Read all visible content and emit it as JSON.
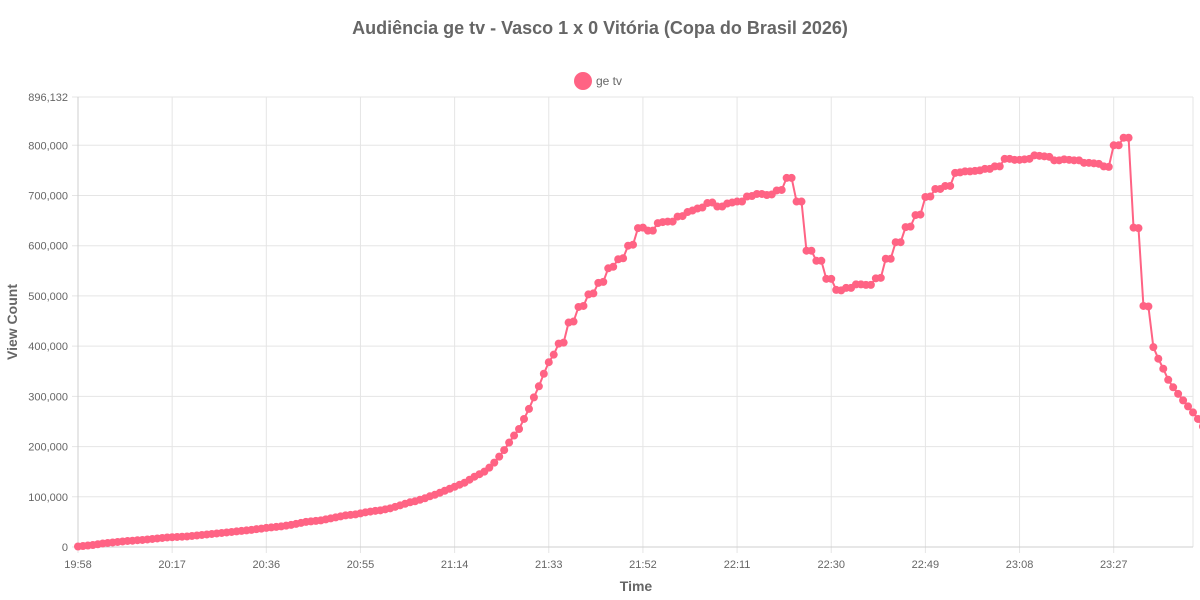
{
  "chart_data": {
    "type": "line",
    "title": "Audiência ge tv - Vasco 1 x 0 Vitória (Copa do Brasil 2026)",
    "xlabel": "Time",
    "ylabel": "View Count",
    "legend_position": "top-center",
    "grid": true,
    "series_color": "#ff6384",
    "ylim": [
      0,
      896132
    ],
    "y_ticks": [
      0,
      100000,
      200000,
      300000,
      400000,
      500000,
      600000,
      700000,
      800000,
      896132
    ],
    "x_tick_labels": [
      "19:58",
      "20:17",
      "20:36",
      "20:55",
      "21:14",
      "21:33",
      "21:52",
      "22:11",
      "22:30",
      "22:49",
      "23:08",
      "23:27"
    ],
    "x_tick_minutes": [
      0,
      19,
      38,
      57,
      76,
      95,
      114,
      133,
      152,
      171,
      190,
      209
    ],
    "x_range_minutes": [
      0,
      225
    ],
    "series": [
      {
        "name": "ge tv",
        "points": [
          [
            0,
            1000
          ],
          [
            1,
            2000
          ],
          [
            2,
            3000
          ],
          [
            3,
            4000
          ],
          [
            4,
            5500
          ],
          [
            5,
            7000
          ],
          [
            6,
            8000
          ],
          [
            7,
            9000
          ],
          [
            8,
            10000
          ],
          [
            9,
            11000
          ],
          [
            10,
            12000
          ],
          [
            11,
            12500
          ],
          [
            12,
            13500
          ],
          [
            13,
            14000
          ],
          [
            14,
            15000
          ],
          [
            15,
            16000
          ],
          [
            16,
            17000
          ],
          [
            17,
            18000
          ],
          [
            18,
            19000
          ],
          [
            19,
            19500
          ],
          [
            20,
            20000
          ],
          [
            21,
            20500
          ],
          [
            22,
            21000
          ],
          [
            23,
            22000
          ],
          [
            24,
            23000
          ],
          [
            25,
            24000
          ],
          [
            26,
            25000
          ],
          [
            27,
            26000
          ],
          [
            28,
            27000
          ],
          [
            29,
            28000
          ],
          [
            30,
            29000
          ],
          [
            31,
            30000
          ],
          [
            32,
            31000
          ],
          [
            33,
            32000
          ],
          [
            34,
            33000
          ],
          [
            35,
            34000
          ],
          [
            36,
            35500
          ],
          [
            37,
            36500
          ],
          [
            38,
            38000
          ],
          [
            39,
            39000
          ],
          [
            40,
            40000
          ],
          [
            41,
            41000
          ],
          [
            42,
            42500
          ],
          [
            43,
            44000
          ],
          [
            44,
            46000
          ],
          [
            45,
            48000
          ],
          [
            46,
            50000
          ],
          [
            47,
            51000
          ],
          [
            48,
            52000
          ],
          [
            49,
            53000
          ],
          [
            50,
            55000
          ],
          [
            51,
            57000
          ],
          [
            52,
            59000
          ],
          [
            53,
            61000
          ],
          [
            54,
            63000
          ],
          [
            55,
            64000
          ],
          [
            56,
            65000
          ],
          [
            57,
            67000
          ],
          [
            58,
            69000
          ],
          [
            59,
            70500
          ],
          [
            60,
            72000
          ],
          [
            61,
            73000
          ],
          [
            62,
            75000
          ],
          [
            63,
            77000
          ],
          [
            64,
            80000
          ],
          [
            65,
            83000
          ],
          [
            66,
            86000
          ],
          [
            67,
            89000
          ],
          [
            68,
            91000
          ],
          [
            69,
            94000
          ],
          [
            70,
            97000
          ],
          [
            71,
            101000
          ],
          [
            72,
            104000
          ],
          [
            73,
            108000
          ],
          [
            74,
            112000
          ],
          [
            75,
            116000
          ],
          [
            76,
            120000
          ],
          [
            77,
            124000
          ],
          [
            78,
            128000
          ],
          [
            79,
            134000
          ],
          [
            80,
            140000
          ],
          [
            81,
            145000
          ],
          [
            82,
            150000
          ],
          [
            83,
            158000
          ],
          [
            84,
            168000
          ],
          [
            85,
            180000
          ],
          [
            86,
            193000
          ],
          [
            87,
            208000
          ],
          [
            88,
            222000
          ],
          [
            89,
            235000
          ],
          [
            90,
            255000
          ],
          [
            91,
            275000
          ],
          [
            92,
            298000
          ],
          [
            93,
            320000
          ],
          [
            94,
            345000
          ],
          [
            95,
            368000
          ],
          [
            96,
            383000
          ],
          [
            97,
            405000
          ],
          [
            98,
            407000
          ],
          [
            99,
            447000
          ],
          [
            100,
            449000
          ],
          [
            101,
            478000
          ],
          [
            102,
            480000
          ],
          [
            103,
            503000
          ],
          [
            104,
            505000
          ],
          [
            105,
            526000
          ],
          [
            106,
            528000
          ],
          [
            107,
            555000
          ],
          [
            108,
            558000
          ],
          [
            109,
            573000
          ],
          [
            110,
            575000
          ],
          [
            111,
            600000
          ],
          [
            112,
            602000
          ],
          [
            113,
            635000
          ],
          [
            114,
            636000
          ],
          [
            115,
            630000
          ],
          [
            116,
            630000
          ],
          [
            117,
            645000
          ],
          [
            118,
            647000
          ],
          [
            119,
            648000
          ],
          [
            120,
            648000
          ],
          [
            121,
            658000
          ],
          [
            122,
            659000
          ],
          [
            123,
            667000
          ],
          [
            124,
            670000
          ],
          [
            125,
            674000
          ],
          [
            126,
            676000
          ],
          [
            127,
            685000
          ],
          [
            128,
            686000
          ],
          [
            129,
            678000
          ],
          [
            130,
            678000
          ],
          [
            131,
            684000
          ],
          [
            132,
            686000
          ],
          [
            133,
            688000
          ],
          [
            134,
            688000
          ],
          [
            135,
            698000
          ],
          [
            136,
            699000
          ],
          [
            137,
            703000
          ],
          [
            138,
            703000
          ],
          [
            139,
            701000
          ],
          [
            140,
            702000
          ],
          [
            141,
            710000
          ],
          [
            142,
            711000
          ],
          [
            143,
            735000
          ],
          [
            144,
            735000
          ],
          [
            145,
            688000
          ],
          [
            146,
            688000
          ],
          [
            147,
            590000
          ],
          [
            148,
            590000
          ],
          [
            149,
            570000
          ],
          [
            150,
            570000
          ],
          [
            151,
            534000
          ],
          [
            152,
            534000
          ],
          [
            153,
            512000
          ],
          [
            154,
            511000
          ],
          [
            155,
            516000
          ],
          [
            156,
            516000
          ],
          [
            157,
            523000
          ],
          [
            158,
            523000
          ],
          [
            159,
            522000
          ],
          [
            160,
            522000
          ],
          [
            161,
            535000
          ],
          [
            162,
            536000
          ],
          [
            163,
            574000
          ],
          [
            164,
            574000
          ],
          [
            165,
            607000
          ],
          [
            166,
            607000
          ],
          [
            167,
            637000
          ],
          [
            168,
            638000
          ],
          [
            169,
            661000
          ],
          [
            170,
            662000
          ],
          [
            171,
            697000
          ],
          [
            172,
            698000
          ],
          [
            173,
            713000
          ],
          [
            174,
            713000
          ],
          [
            175,
            719000
          ],
          [
            176,
            719000
          ],
          [
            177,
            745000
          ],
          [
            178,
            746000
          ],
          [
            179,
            748000
          ],
          [
            180,
            748000
          ],
          [
            181,
            749000
          ],
          [
            182,
            750000
          ],
          [
            183,
            753000
          ],
          [
            184,
            753000
          ],
          [
            185,
            758000
          ],
          [
            186,
            758000
          ],
          [
            187,
            773000
          ],
          [
            188,
            773000
          ],
          [
            189,
            771000
          ],
          [
            190,
            771000
          ],
          [
            191,
            772000
          ],
          [
            192,
            773000
          ],
          [
            193,
            780000
          ],
          [
            194,
            779000
          ],
          [
            195,
            778000
          ],
          [
            196,
            777000
          ],
          [
            197,
            770000
          ],
          [
            198,
            770000
          ],
          [
            199,
            772000
          ],
          [
            200,
            771000
          ],
          [
            201,
            770000
          ],
          [
            202,
            770000
          ],
          [
            203,
            765000
          ],
          [
            204,
            765000
          ],
          [
            205,
            764000
          ],
          [
            206,
            763000
          ],
          [
            207,
            758000
          ],
          [
            208,
            757000
          ],
          [
            209,
            800000
          ],
          [
            210,
            800000
          ],
          [
            211,
            815000
          ],
          [
            212,
            815000
          ],
          [
            213,
            636000
          ],
          [
            214,
            635000
          ],
          [
            215,
            480000
          ],
          [
            216,
            479000
          ],
          [
            217,
            398000
          ],
          [
            218,
            375000
          ],
          [
            219,
            355000
          ],
          [
            220,
            333000
          ],
          [
            221,
            318000
          ],
          [
            222,
            305000
          ],
          [
            223,
            292000
          ],
          [
            224,
            280000
          ],
          [
            225,
            268000
          ],
          [
            226,
            255000
          ],
          [
            227,
            240000
          ],
          [
            228,
            216000
          ]
        ]
      }
    ]
  }
}
